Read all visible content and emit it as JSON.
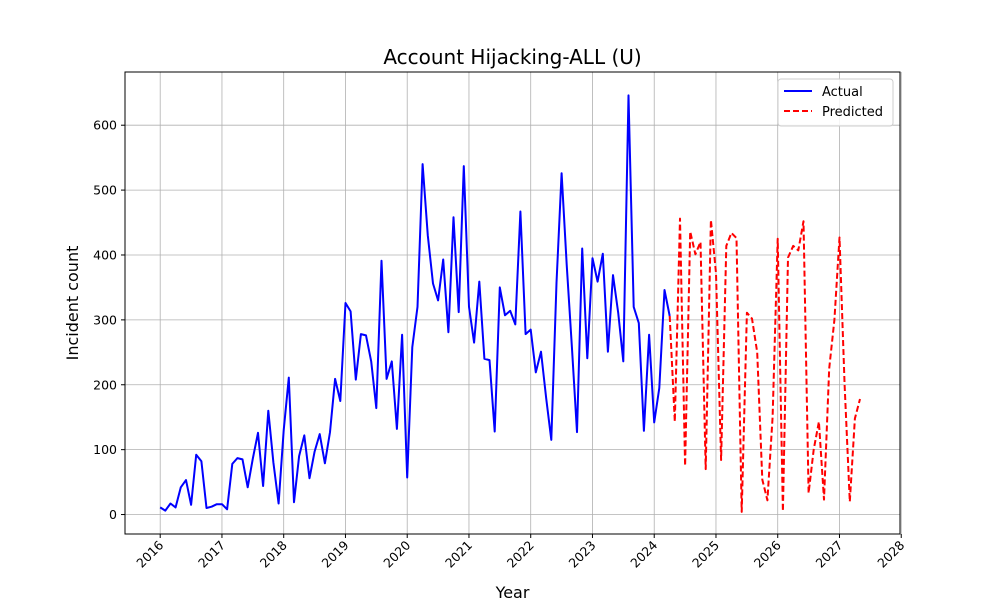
{
  "chart_data": {
    "type": "line",
    "title": "Account Hijacking-ALL (U)",
    "xlabel": "Year",
    "ylabel": "Incident count",
    "xlim": [
      2015.43,
      2027.98
    ],
    "ylim": [
      -30,
      682
    ],
    "x_ticks": [
      2016,
      2017,
      2018,
      2019,
      2020,
      2021,
      2022,
      2023,
      2024,
      2025,
      2026,
      2027,
      2028
    ],
    "x_tick_labels": [
      "2016",
      "2017",
      "2018",
      "2019",
      "2020",
      "2021",
      "2022",
      "2023",
      "2024",
      "2025",
      "2026",
      "2027",
      "2028"
    ],
    "y_ticks": [
      0,
      100,
      200,
      300,
      400,
      500,
      600
    ],
    "y_tick_labels": [
      "0",
      "100",
      "200",
      "300",
      "400",
      "500",
      "600"
    ],
    "grid": true,
    "legend_position": "top-right",
    "series": [
      {
        "name": "Actual",
        "color": "#0000ff",
        "style": "solid",
        "x": [
          2016.0,
          2016.083,
          2016.167,
          2016.25,
          2016.333,
          2016.417,
          2016.5,
          2016.583,
          2016.667,
          2016.75,
          2016.833,
          2016.917,
          2017.0,
          2017.083,
          2017.167,
          2017.25,
          2017.333,
          2017.417,
          2017.5,
          2017.583,
          2017.667,
          2017.75,
          2017.833,
          2017.917,
          2018.0,
          2018.083,
          2018.167,
          2018.25,
          2018.333,
          2018.417,
          2018.5,
          2018.583,
          2018.667,
          2018.75,
          2018.833,
          2018.917,
          2019.0,
          2019.083,
          2019.167,
          2019.25,
          2019.333,
          2019.417,
          2019.5,
          2019.583,
          2019.667,
          2019.75,
          2019.833,
          2019.917,
          2020.0,
          2020.083,
          2020.167,
          2020.25,
          2020.333,
          2020.417,
          2020.5,
          2020.583,
          2020.667,
          2020.75,
          2020.833,
          2020.917,
          2021.0,
          2021.083,
          2021.167,
          2021.25,
          2021.333,
          2021.417,
          2021.5,
          2021.583,
          2021.667,
          2021.75,
          2021.833,
          2021.917,
          2022.0,
          2022.083,
          2022.167,
          2022.25,
          2022.333,
          2022.417,
          2022.5,
          2022.583,
          2022.667,
          2022.75,
          2022.833,
          2022.917,
          2023.0,
          2023.083,
          2023.167,
          2023.25,
          2023.333,
          2023.417,
          2023.5,
          2023.583,
          2023.667,
          2023.75,
          2023.833,
          2023.917,
          2024.0,
          2024.083,
          2024.167,
          2024.25
        ],
        "values": [
          11,
          6,
          17,
          11,
          42,
          53,
          15,
          92,
          82,
          10,
          12,
          16,
          16,
          8,
          78,
          87,
          85,
          42,
          86,
          126,
          44,
          160,
          80,
          17,
          130,
          211,
          19,
          90,
          122,
          56,
          97,
          124,
          79,
          127,
          209,
          175,
          326,
          313,
          208,
          278,
          276,
          236,
          164,
          391,
          209,
          236,
          132,
          277,
          57,
          258,
          320,
          540,
          430,
          356,
          330,
          393,
          281,
          458,
          312,
          537,
          320,
          265,
          359,
          240,
          238,
          128,
          350,
          307,
          314,
          293,
          467,
          278,
          285,
          219,
          251,
          179,
          115,
          357,
          526,
          385,
          258,
          127,
          410,
          241,
          395,
          359,
          402,
          251,
          369,
          311,
          236,
          646,
          320,
          295,
          129,
          277,
          142,
          195,
          346,
          306
        ]
      },
      {
        "name": "Predicted",
        "color": "#ff0000",
        "style": "dashed",
        "x": [
          2024.25,
          2024.333,
          2024.417,
          2024.5,
          2024.583,
          2024.667,
          2024.75,
          2024.833,
          2024.917,
          2025.0,
          2025.083,
          2025.167,
          2025.25,
          2025.333,
          2025.417,
          2025.5,
          2025.583,
          2025.667,
          2025.75,
          2025.833,
          2025.917,
          2026.0,
          2026.083,
          2026.167,
          2026.25,
          2026.333,
          2026.417,
          2026.5,
          2026.583,
          2026.667,
          2026.75,
          2026.833,
          2026.917,
          2027.0,
          2027.083,
          2027.167,
          2027.25,
          2027.333
        ],
        "values": [
          306,
          143,
          456,
          75,
          436,
          401,
          420,
          70,
          454,
          372,
          84,
          414,
          434,
          426,
          4,
          311,
          302,
          250,
          54,
          22,
          150,
          425,
          5,
          396,
          414,
          407,
          452,
          33,
          100,
          143,
          23,
          225,
          300,
          427,
          200,
          20,
          148,
          178
        ]
      }
    ]
  }
}
